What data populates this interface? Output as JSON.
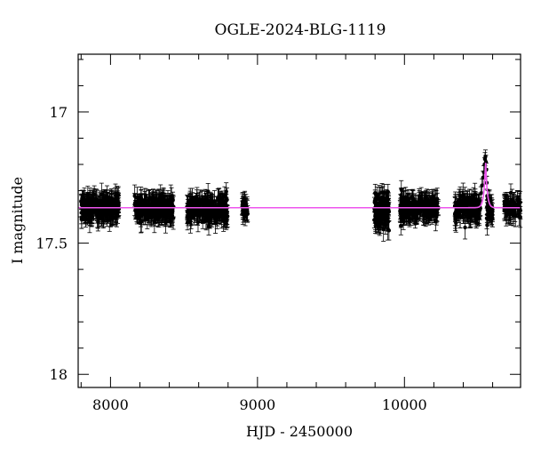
{
  "chart_data": {
    "type": "scatter",
    "title": "OGLE-2024-BLG-1119",
    "xlabel": "HJD - 2450000",
    "ylabel": "I magnitude",
    "xlim": [
      7780,
      10790
    ],
    "ylim": [
      18.05,
      16.78
    ],
    "y_inverted": true,
    "x_ticks": [
      8000,
      9000,
      10000
    ],
    "x_tick_labels": [
      "8000",
      "9000",
      "10000"
    ],
    "y_ticks": [
      17,
      17.5,
      18
    ],
    "y_tick_labels": [
      "17",
      "17.5",
      "18"
    ],
    "grid": false,
    "legend": "none",
    "colors": {
      "data": "#000000",
      "model": "#ee55ee"
    },
    "seasons": [
      {
        "x_range": [
          7800,
          8060
        ],
        "center_mag": 17.365,
        "scatter": 0.035,
        "n": 260
      },
      {
        "x_range": [
          8160,
          8430
        ],
        "center_mag": 17.365,
        "scatter": 0.035,
        "n": 260
      },
      {
        "x_range": [
          8520,
          8800
        ],
        "center_mag": 17.37,
        "scatter": 0.04,
        "n": 260
      },
      {
        "x_range": [
          8895,
          8935
        ],
        "center_mag": 17.37,
        "scatter": 0.035,
        "n": 30
      },
      {
        "x_range": [
          9795,
          9895
        ],
        "center_mag": 17.38,
        "scatter": 0.05,
        "n": 140
      },
      {
        "x_range": [
          9970,
          10230
        ],
        "center_mag": 17.365,
        "scatter": 0.035,
        "n": 220
      },
      {
        "x_range": [
          10340,
          10520
        ],
        "center_mag": 17.37,
        "scatter": 0.035,
        "n": 150
      },
      {
        "x_range": [
          10560,
          10600
        ],
        "center_mag": 17.37,
        "scatter": 0.03,
        "n": 40
      },
      {
        "x_range": [
          10680,
          10790
        ],
        "center_mag": 17.365,
        "scatter": 0.03,
        "n": 70
      }
    ],
    "event_points": {
      "x": [
        10500,
        10510,
        10520,
        10528,
        10535,
        10540,
        10545,
        10548,
        10551,
        10554,
        10557,
        10560,
        10563,
        10566,
        10570
      ],
      "y": [
        17.36,
        17.34,
        17.31,
        17.28,
        17.25,
        17.23,
        17.2,
        17.18,
        17.17,
        17.19,
        17.22,
        17.27,
        17.32,
        17.35,
        17.37
      ]
    },
    "model": {
      "baseline": 17.365,
      "t0": 10552,
      "peak_mag": 17.185,
      "width": 12,
      "x_range": [
        7780,
        10790
      ]
    }
  }
}
